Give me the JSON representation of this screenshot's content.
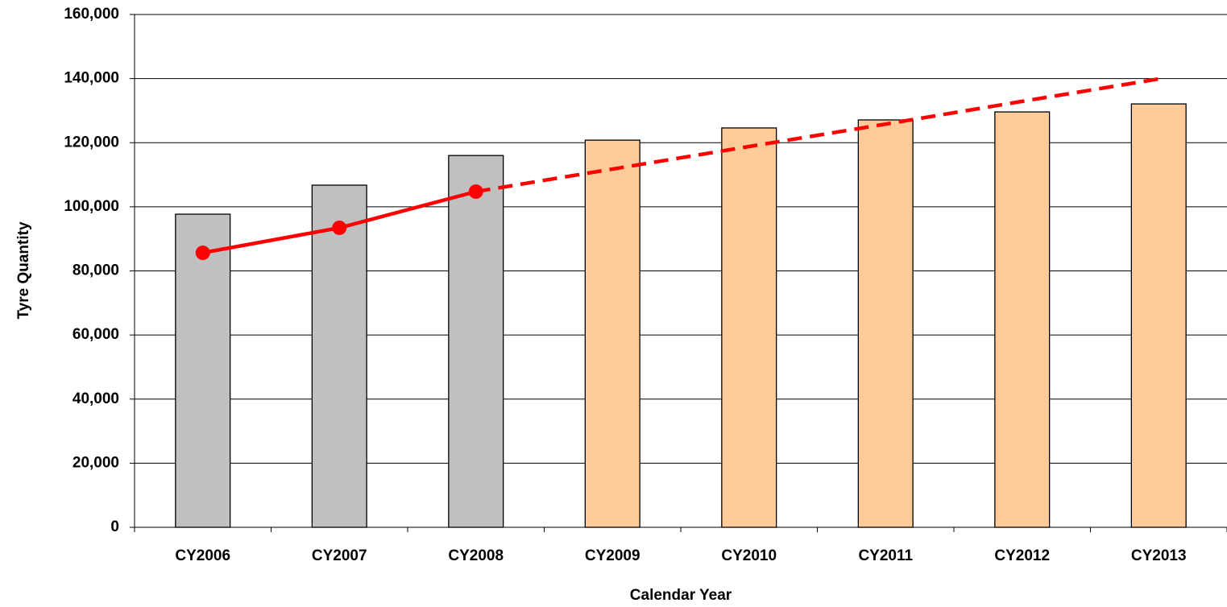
{
  "chart_data": {
    "type": "bar",
    "xlabel": "Calendar Year",
    "ylabel": "Tyre Quantity",
    "categories": [
      "CY2006",
      "CY2007",
      "CY2008",
      "CY2009",
      "CY2010",
      "CY2011",
      "CY2012",
      "CY2013"
    ],
    "series": [
      {
        "type": "bar",
        "colors": [
          "#c0c0c0",
          "#c0c0c0",
          "#c0c0c0",
          "#ffcc99",
          "#ffcc99",
          "#ffcc99",
          "#ffcc99",
          "#ffcc99"
        ],
        "values": [
          97700,
          106750,
          116000,
          120800,
          124600,
          127100,
          129600,
          132100
        ]
      },
      {
        "type": "line",
        "color": "#ff0000",
        "markers": true,
        "values": [
          85650,
          93440,
          104740,
          null,
          null,
          null,
          null,
          null
        ]
      },
      {
        "type": "line",
        "color": "#ff0000",
        "dashed": true,
        "values": [
          null,
          null,
          104740,
          111770,
          118800,
          125800,
          132900,
          139900
        ]
      }
    ],
    "ylim": [
      0,
      160000
    ],
    "yticks": [
      0,
      {
        "value": 20000,
        "label": "20,000"
      },
      {
        "value": 40000,
        "label": "40,000"
      },
      {
        "value": 60000,
        "label": "60,000"
      },
      {
        "value": 80000,
        "label": "80,000"
      },
      {
        "value": 100000,
        "label": "100,000"
      },
      {
        "value": 120000,
        "label": "120,000"
      },
      {
        "value": 140000,
        "label": "140,000"
      },
      {
        "value": 160000,
        "label": "160,000"
      }
    ],
    "grid": true
  }
}
